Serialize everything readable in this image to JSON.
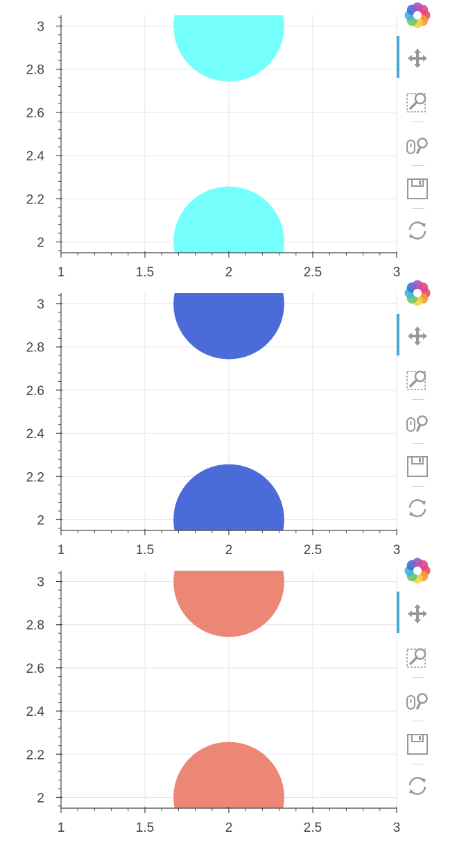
{
  "theme": {
    "grid_color": "#e5e5e5",
    "axis_color": "#444444",
    "label_color": "#444444",
    "active_tool_color": "#48a9d9",
    "icon_color": "#999999"
  },
  "toolbar": {
    "tools": [
      {
        "name": "bokeh-logo",
        "icon": "bokeh-logo-icon",
        "active": false
      },
      {
        "name": "pan-tool",
        "icon": "pan-icon",
        "active": true
      },
      {
        "name": "box-zoom-tool",
        "icon": "box-zoom-icon",
        "active": false
      },
      {
        "name": "wheel-zoom-tool",
        "icon": "wheel-zoom-icon",
        "active": false
      },
      {
        "name": "save-tool",
        "icon": "save-icon",
        "active": false
      },
      {
        "name": "reset-tool",
        "icon": "reset-icon",
        "active": false
      }
    ]
  },
  "chart_data": [
    {
      "type": "scatter",
      "marker": "circle",
      "color": "#74fffd",
      "x": [
        2,
        2
      ],
      "y": [
        2,
        3
      ],
      "radius": 0.33,
      "xlim": [
        1,
        3
      ],
      "ylim": [
        1.95,
        3.05
      ],
      "xticks": [
        "1",
        "1.5",
        "2",
        "2.5",
        "3"
      ],
      "yticks": [
        "2",
        "2.2",
        "2.4",
        "2.6",
        "2.8",
        "3"
      ],
      "grid": true
    },
    {
      "type": "scatter",
      "marker": "circle",
      "color": "#4a6bd8",
      "x": [
        2,
        2
      ],
      "y": [
        2,
        3
      ],
      "radius": 0.33,
      "xlim": [
        1,
        3
      ],
      "ylim": [
        1.95,
        3.05
      ],
      "xticks": [
        "1",
        "1.5",
        "2",
        "2.5",
        "3"
      ],
      "yticks": [
        "2",
        "2.2",
        "2.4",
        "2.6",
        "2.8",
        "3"
      ],
      "grid": true
    },
    {
      "type": "scatter",
      "marker": "circle",
      "color": "#ec8675",
      "x": [
        2,
        2
      ],
      "y": [
        2,
        3
      ],
      "radius": 0.33,
      "xlim": [
        1,
        3
      ],
      "ylim": [
        1.95,
        3.05
      ],
      "xticks": [
        "1",
        "1.5",
        "2",
        "2.5",
        "3"
      ],
      "yticks": [
        "2",
        "2.2",
        "2.4",
        "2.6",
        "2.8",
        "3"
      ],
      "grid": true
    }
  ]
}
